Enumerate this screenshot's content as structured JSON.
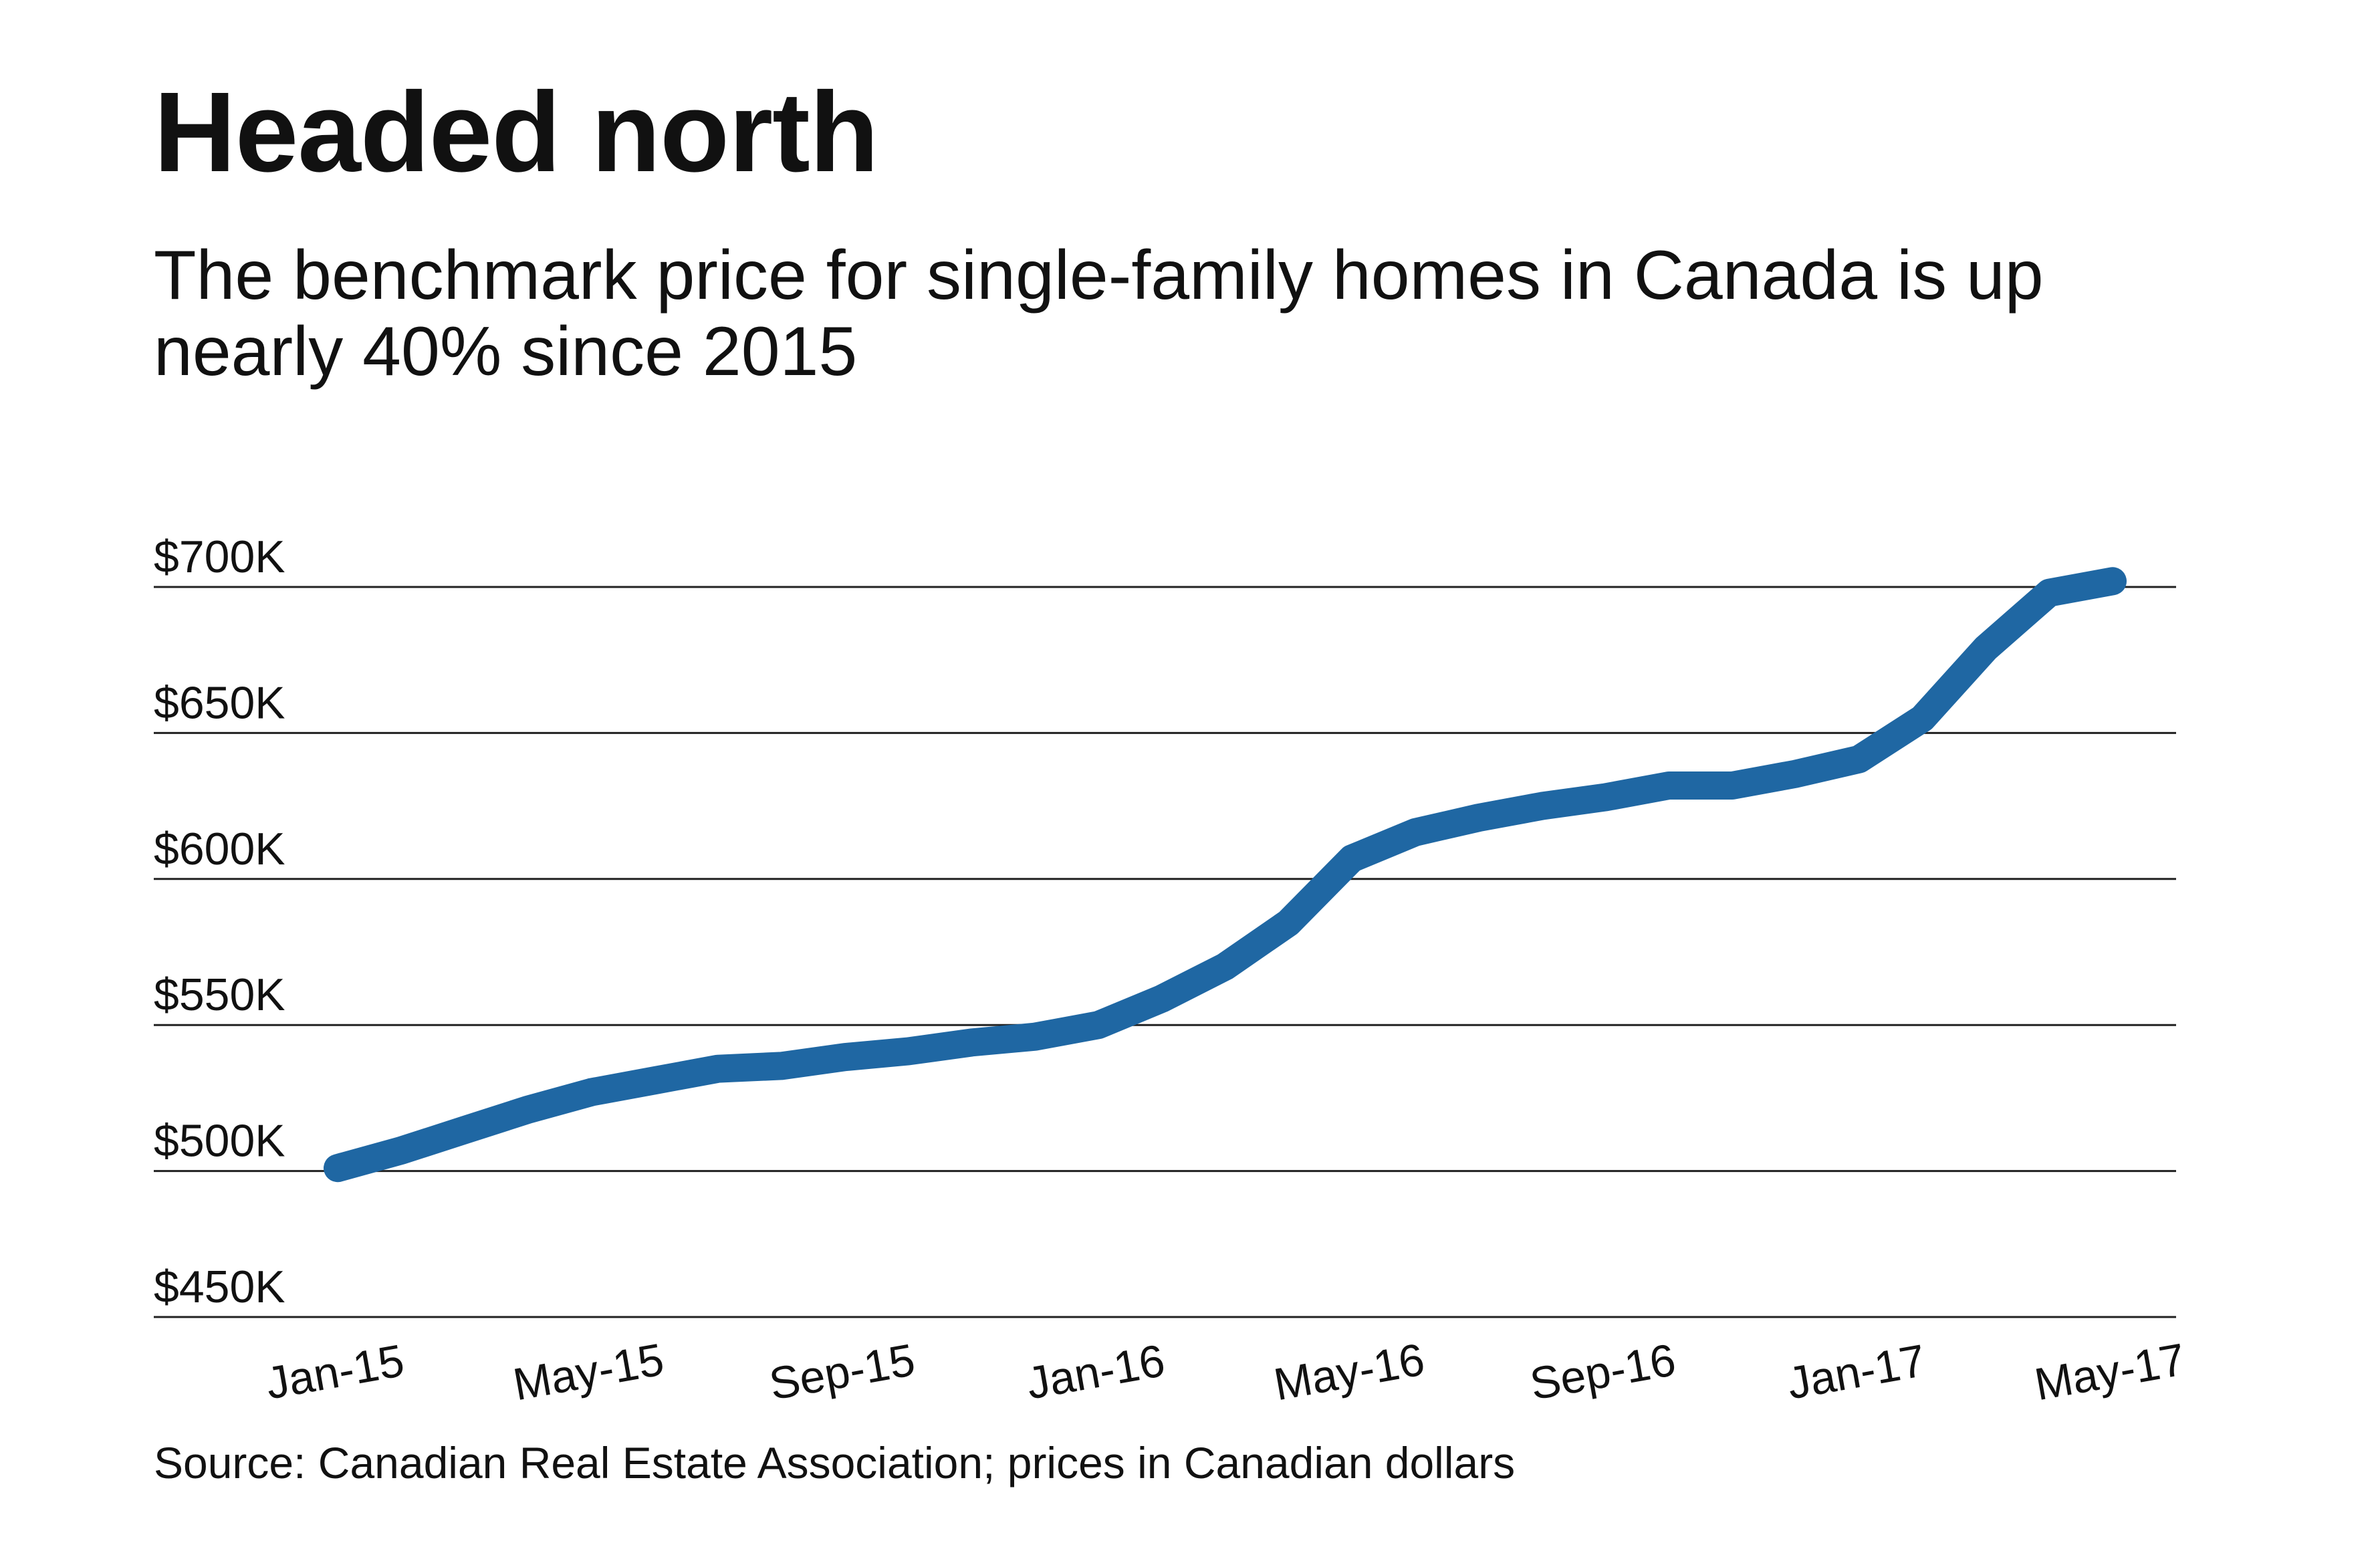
{
  "title": "Headed north",
  "subtitle": "The benchmark price for single-family homes in Canada is up nearly 40% since 2015",
  "source": "Source: Canadian Real Estate Association; prices in Canadian dollars",
  "chart_data": {
    "type": "line",
    "title": "Headed north",
    "subtitle": "The benchmark price for single-family homes in Canada is up nearly 40% since 2015",
    "xlabel": "",
    "ylabel": "",
    "ylim": [
      450000,
      700000
    ],
    "grid": "horizontal",
    "line_color": "#1f67a3",
    "y_ticks": [
      {
        "value": 700000,
        "label": "$700K"
      },
      {
        "value": 650000,
        "label": "$650K"
      },
      {
        "value": 600000,
        "label": "$600K"
      },
      {
        "value": 550000,
        "label": "$550K"
      },
      {
        "value": 500000,
        "label": "$500K"
      },
      {
        "value": 450000,
        "label": "$450K"
      }
    ],
    "x_ticks": [
      "Jan-15",
      "May-15",
      "Sep-15",
      "Jan-16",
      "May-16",
      "Sep-16",
      "Jan-17",
      "May-17"
    ],
    "x": [
      "Jan-15",
      "Feb-15",
      "Mar-15",
      "Apr-15",
      "May-15",
      "Jun-15",
      "Jul-15",
      "Aug-15",
      "Sep-15",
      "Oct-15",
      "Nov-15",
      "Dec-15",
      "Jan-16",
      "Feb-16",
      "Mar-16",
      "Apr-16",
      "May-16",
      "Jun-16",
      "Jul-16",
      "Aug-16",
      "Sep-16",
      "Oct-16",
      "Nov-16",
      "Dec-16",
      "Jan-17",
      "Feb-17",
      "Mar-17",
      "Apr-17",
      "May-17"
    ],
    "series": [
      {
        "values": [
          501000,
          507000,
          514000,
          521000,
          527000,
          531000,
          535000,
          536000,
          539000,
          541000,
          544000,
          546000,
          550000,
          559000,
          570000,
          585000,
          607000,
          616000,
          621000,
          625000,
          628000,
          632000,
          632000,
          636000,
          641000,
          655000,
          679000,
          698000,
          702000
        ]
      }
    ]
  }
}
